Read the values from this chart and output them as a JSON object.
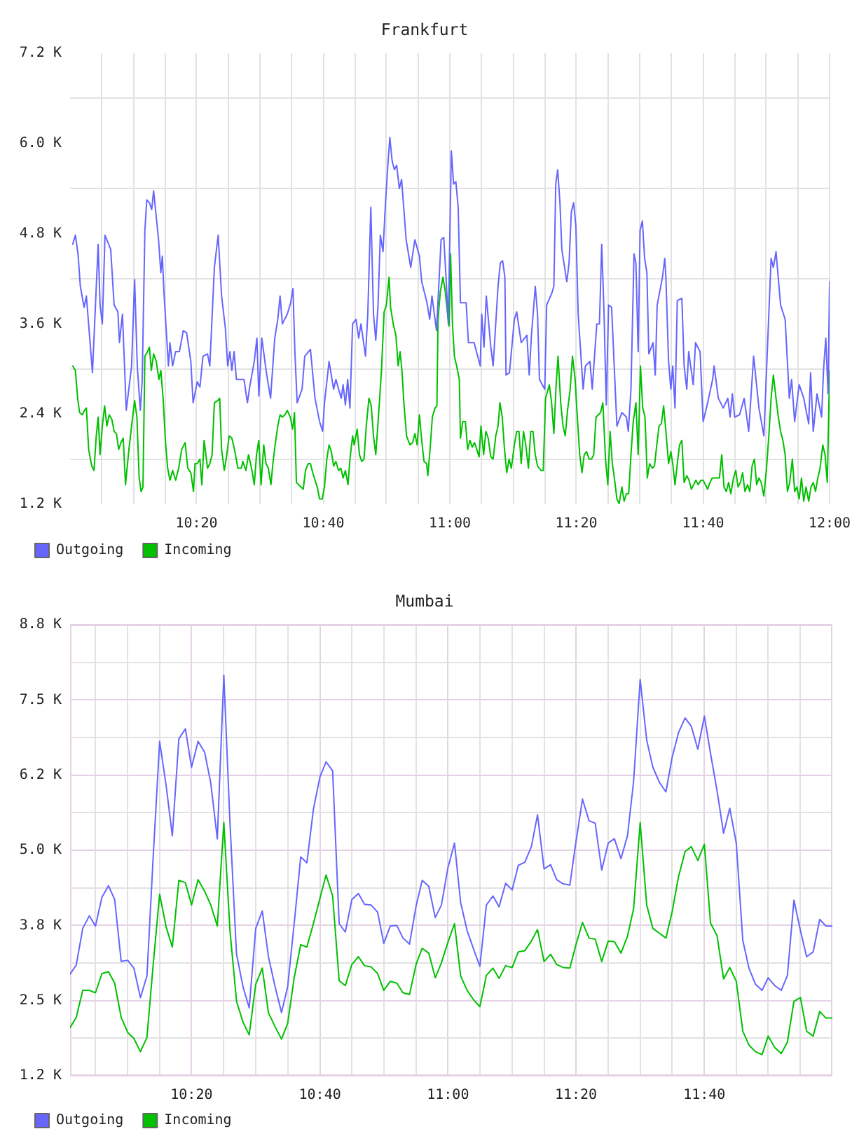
{
  "chart_data": [
    {
      "type": "line",
      "title": "Frankfurt",
      "legend": "bottom left",
      "grid": true,
      "marker": "none",
      "xlim": [
        10,
        12
      ],
      "xticks": [
        {
          "value": 10.083,
          "label": null
        },
        {
          "value": 10.167,
          "label": null
        },
        {
          "value": 10.25,
          "label": null
        },
        {
          "value": 10.333,
          "label": "10:20"
        },
        {
          "value": 10.417,
          "label": null
        },
        {
          "value": 10.5,
          "label": null
        },
        {
          "value": 10.583,
          "label": null
        },
        {
          "value": 10.667,
          "label": "10:40"
        },
        {
          "value": 10.75,
          "label": null
        },
        {
          "value": 10.833,
          "label": null
        },
        {
          "value": 10.917,
          "label": null
        },
        {
          "value": 11,
          "label": "11:00"
        },
        {
          "value": 11.083,
          "label": null
        },
        {
          "value": 11.167,
          "label": null
        },
        {
          "value": 11.25,
          "label": null
        },
        {
          "value": 11.333,
          "label": "11:20"
        },
        {
          "value": 11.417,
          "label": null
        },
        {
          "value": 11.5,
          "label": null
        },
        {
          "value": 11.583,
          "label": null
        },
        {
          "value": 11.667,
          "label": "11:40"
        },
        {
          "value": 11.75,
          "label": null
        },
        {
          "value": 11.833,
          "label": null
        },
        {
          "value": 11.917,
          "label": null
        },
        {
          "value": 12,
          "label": "12:00"
        }
      ],
      "ylim": [
        1200,
        7200
      ],
      "yticks": [
        {
          "value": 1200,
          "label": "1.2 K"
        },
        {
          "value": 1800,
          "label": null
        },
        {
          "value": 2400,
          "label": "2.4 K"
        },
        {
          "value": 3000,
          "label": null
        },
        {
          "value": 3600,
          "label": "3.6 K"
        },
        {
          "value": 4200,
          "label": null
        },
        {
          "value": 4800,
          "label": "4.8 K"
        },
        {
          "value": 5400,
          "label": null
        },
        {
          "value": 6000,
          "label": "6.0 K"
        },
        {
          "value": 6600,
          "label": null
        },
        {
          "value": 7200,
          "label": "7.2 K"
        }
      ],
      "series": [
        {
          "name": "Outgoing",
          "color": "#6666ff",
          "x": [
            10.007,
            10.014,
            10.021,
            10.027,
            10.037,
            10.043,
            10.059,
            10.074,
            10.079,
            10.085,
            10.092,
            10.107,
            10.116,
            10.126,
            10.13,
            10.138,
            10.148,
            10.162,
            10.17,
            10.177,
            10.185,
            10.19,
            10.197,
            10.202,
            10.209,
            10.215,
            10.22,
            10.233,
            10.239,
            10.243,
            10.247,
            10.259,
            10.263,
            10.27,
            10.278,
            10.288,
            10.298,
            10.307,
            10.318,
            10.324,
            10.335,
            10.342,
            10.35,
            10.362,
            10.368,
            10.38,
            10.39,
            10.399,
            10.409,
            10.415,
            10.421,
            10.426,
            10.432,
            10.438,
            10.458,
            10.467,
            10.473,
            10.485,
            10.492,
            10.497,
            10.505,
            10.517,
            10.528,
            10.539,
            10.547,
            10.553,
            10.559,
            10.572,
            10.581,
            10.587,
            10.592,
            10.598,
            10.611,
            10.618,
            10.633,
            10.645,
            10.657,
            10.665,
            10.67,
            10.682,
            10.694,
            10.7,
            10.714,
            10.719,
            10.725,
            10.731,
            10.737,
            10.744,
            10.753,
            10.76,
            10.766,
            10.778,
            10.784,
            10.792,
            10.799,
            10.805,
            10.811,
            10.817,
            10.824,
            10.83,
            10.836,
            10.842,
            10.848,
            10.854,
            10.86,
            10.867,
            10.873,
            10.885,
            10.897,
            10.908,
            10.92,
            10.926,
            10.94,
            10.947,
            10.953,
            10.965,
            10.977,
            10.984,
            10.99,
            10.996,
            11.004,
            11.01,
            11.016,
            11.022,
            11.028,
            11.043,
            11.049,
            11.064,
            11.08,
            11.084,
            11.09,
            11.096,
            11.108,
            11.114,
            11.127,
            11.133,
            11.139,
            11.145,
            11.148,
            11.157,
            11.17,
            11.176,
            11.188,
            11.203,
            11.209,
            11.215,
            11.225,
            11.231,
            11.236,
            11.25,
            11.255,
            11.268,
            11.274,
            11.279,
            11.284,
            11.29,
            11.295,
            11.308,
            11.314,
            11.32,
            11.326,
            11.332,
            11.338,
            11.351,
            11.357,
            11.369,
            11.375,
            11.387,
            11.394,
            11.4,
            11.406,
            11.412,
            11.418,
            11.426,
            11.44,
            11.453,
            11.465,
            11.47,
            11.477,
            11.485,
            11.49,
            11.496,
            11.501,
            11.507,
            11.513,
            11.519,
            11.524,
            11.535,
            11.541,
            11.546,
            11.56,
            11.566,
            11.569,
            11.576,
            11.582,
            11.587,
            11.593,
            11.599,
            11.611,
            11.617,
            11.624,
            11.629,
            11.641,
            11.647,
            11.659,
            11.667,
            11.679,
            11.692,
            11.696,
            11.707,
            11.72,
            11.732,
            11.738,
            11.744,
            11.75,
            11.763,
            11.775,
            11.787,
            11.8,
            11.814,
            11.827,
            11.834,
            11.846,
            11.852,
            11.859,
            11.871,
            11.883,
            11.894,
            11.9,
            11.908,
            11.92,
            11.932,
            11.945,
            11.95,
            11.957,
            11.967,
            11.979,
            11.984,
            11.99,
            11.996,
            12
          ],
          "values": [
            4660,
            4780,
            4530,
            4100,
            3820,
            3970,
            2950,
            4660,
            3850,
            3600,
            4780,
            4590,
            3850,
            3760,
            3350,
            3730,
            2450,
            3040,
            4190,
            3040,
            2450,
            2860,
            4840,
            5250,
            5210,
            5120,
            5370,
            4720,
            4280,
            4500,
            4040,
            3040,
            3350,
            3040,
            3230,
            3230,
            3510,
            3480,
            3100,
            2550,
            2830,
            2760,
            3170,
            3200,
            3040,
            4350,
            4780,
            3970,
            3540,
            3040,
            3230,
            2980,
            3230,
            2860,
            2860,
            2550,
            2760,
            3100,
            3410,
            2640,
            3410,
            2950,
            2610,
            3410,
            3660,
            3970,
            3600,
            3730,
            3880,
            4070,
            3230,
            2550,
            2730,
            3170,
            3260,
            2610,
            2300,
            2170,
            2550,
            3100,
            2730,
            2860,
            2610,
            2790,
            2520,
            2860,
            2480,
            3600,
            3660,
            3410,
            3600,
            3170,
            3730,
            5150,
            3730,
            3380,
            3850,
            4780,
            4560,
            5150,
            5650,
            6080,
            5770,
            5650,
            5710,
            5400,
            5520,
            4720,
            4350,
            4720,
            4500,
            4160,
            3880,
            3660,
            3970,
            3510,
            4720,
            4750,
            4220,
            3600,
            5900,
            5460,
            5490,
            5150,
            3880,
            3880,
            3350,
            3350,
            3040,
            3730,
            3290,
            3970,
            3290,
            3040,
            4100,
            4410,
            4440,
            4220,
            2920,
            2950,
            3660,
            3760,
            3350,
            3450,
            2920,
            3450,
            4100,
            3730,
            2860,
            2730,
            3850,
            4000,
            4100,
            5460,
            5650,
            5210,
            4590,
            4160,
            4410,
            5090,
            5210,
            4900,
            3730,
            2730,
            3040,
            3100,
            2730,
            3600,
            3600,
            4660,
            3760,
            2520,
            3850,
            3820,
            2240,
            2420,
            2360,
            2170,
            2730,
            4530,
            4410,
            3230,
            4840,
            4970,
            4470,
            4280,
            3200,
            3350,
            2920,
            3850,
            4220,
            4470,
            4220,
            3100,
            2730,
            3040,
            2480,
            3910,
            3940,
            3040,
            2730,
            3230,
            2790,
            3350,
            3230,
            2300,
            2550,
            2860,
            3040,
            2610,
            2480,
            2610,
            2360,
            2670,
            2360,
            2390,
            2610,
            2170,
            3170,
            2480,
            2110,
            2980,
            4470,
            4350,
            4560,
            3850,
            3660,
            2610,
            2860,
            2300,
            2790,
            2610,
            2270,
            2950,
            2170,
            2670,
            2360,
            2980,
            3410,
            2670,
            4160
          ]
        },
        {
          "name": "Incoming",
          "color": "#00c000",
          "x": [
            10.007,
            10.014,
            10.02,
            10.025,
            10.032,
            10.038,
            10.043,
            10.049,
            10.057,
            10.063,
            10.069,
            10.074,
            10.079,
            10.085,
            10.091,
            10.097,
            10.103,
            10.11,
            10.116,
            10.122,
            10.128,
            10.134,
            10.14,
            10.146,
            10.155,
            10.162,
            10.17,
            10.176,
            10.182,
            10.187,
            10.192,
            10.197,
            10.204,
            10.209,
            10.214,
            10.22,
            10.227,
            10.234,
            10.239,
            10.245,
            10.251,
            10.257,
            10.263,
            10.27,
            10.278,
            10.286,
            10.294,
            10.303,
            10.31,
            10.318,
            10.325,
            10.329,
            10.335,
            10.342,
            10.347,
            10.353,
            10.362,
            10.368,
            10.374,
            10.38,
            10.389,
            10.394,
            10.399,
            10.406,
            10.411,
            10.419,
            10.426,
            10.433,
            10.442,
            10.451,
            10.455,
            10.463,
            10.47,
            10.479,
            10.485,
            10.491,
            10.497,
            10.503,
            10.51,
            10.516,
            10.522,
            10.529,
            10.534,
            10.54,
            10.547,
            10.553,
            10.559,
            10.566,
            10.572,
            10.58,
            10.586,
            10.591,
            10.596,
            10.602,
            10.608,
            10.614,
            10.62,
            10.627,
            10.633,
            10.639,
            10.645,
            10.651,
            10.657,
            10.664,
            10.67,
            10.676,
            10.682,
            10.688,
            10.694,
            10.7,
            10.707,
            10.713,
            10.719,
            10.725,
            10.732,
            10.737,
            10.744,
            10.748,
            10.756,
            10.762,
            10.768,
            10.774,
            10.78,
            10.787,
            10.793,
            10.799,
            10.805,
            10.812,
            10.82,
            10.827,
            10.833,
            10.84,
            10.844,
            10.852,
            10.858,
            10.864,
            10.869,
            10.874,
            10.879,
            10.886,
            10.895,
            10.902,
            10.908,
            10.914,
            10.92,
            10.926,
            10.932,
            10.939,
            10.942,
            10.948,
            10.954,
            10.961,
            10.966,
            10.969,
            10.975,
            10.982,
            10.988,
            10.994,
            10.998,
            11.002,
            11.007,
            11.012,
            11.018,
            11.025,
            11.028,
            11.034,
            11.041,
            11.047,
            11.053,
            11.059,
            11.065,
            11.071,
            11.077,
            11.082,
            11.089,
            11.095,
            11.101,
            11.108,
            11.114,
            11.121,
            11.127,
            11.132,
            11.138,
            11.144,
            11.15,
            11.156,
            11.162,
            11.17,
            11.176,
            11.182,
            11.188,
            11.194,
            11.2,
            11.207,
            11.213,
            11.219,
            11.225,
            11.231,
            11.24,
            11.246,
            11.252,
            11.262,
            11.268,
            11.274,
            11.28,
            11.285,
            11.292,
            11.298,
            11.304,
            11.31,
            11.317,
            11.323,
            11.33,
            11.335,
            11.342,
            11.348,
            11.354,
            11.36,
            11.367,
            11.373,
            11.379,
            11.385,
            11.391,
            11.397,
            11.403,
            11.41,
            11.416,
            11.422,
            11.428,
            11.434,
            11.44,
            11.446,
            11.453,
            11.459,
            11.465,
            11.471,
            11.477,
            11.483,
            11.49,
            11.496,
            11.502,
            11.508,
            11.514,
            11.52,
            11.526,
            11.533,
            11.539,
            11.545,
            11.551,
            11.557,
            11.563,
            11.569,
            11.576,
            11.582,
            11.587,
            11.593,
            11.599,
            11.605,
            11.611,
            11.617,
            11.624,
            11.63,
            11.636,
            11.642,
            11.648,
            11.654,
            11.661,
            11.667,
            11.673,
            11.679,
            11.685,
            11.691,
            11.697,
            11.704,
            11.71,
            11.716,
            11.722,
            11.728,
            11.734,
            11.74,
            11.747,
            11.753,
            11.759,
            11.765,
            11.771,
            11.777,
            11.784,
            11.79,
            11.796,
            11.802,
            11.808,
            11.814,
            11.82,
            11.827,
            11.834,
            11.84,
            11.846,
            11.852,
            11.859,
            11.865,
            11.871,
            11.877,
            11.883,
            11.889,
            11.895,
            11.902,
            11.908,
            11.914,
            11.92,
            11.926,
            11.932,
            11.938,
            11.945,
            11.951,
            11.957,
            11.963,
            11.969,
            11.975,
            11.982,
            11.988,
            11.994,
            12
          ],
          "values": [
            3040,
            2980,
            2610,
            2420,
            2390,
            2450,
            2480,
            1930,
            1710,
            1650,
            2110,
            2360,
            1860,
            2240,
            2510,
            2240,
            2390,
            2330,
            2170,
            2140,
            1930,
            2020,
            2080,
            1460,
            1930,
            2240,
            2580,
            2360,
            1550,
            1370,
            1430,
            3170,
            3230,
            3290,
            2980,
            3200,
            3100,
            2860,
            2980,
            2610,
            2050,
            1680,
            1520,
            1650,
            1520,
            1680,
            1930,
            2020,
            1680,
            1620,
            1370,
            1740,
            1740,
            1800,
            1460,
            2050,
            1680,
            1740,
            1860,
            2550,
            2580,
            2610,
            1930,
            1650,
            1800,
            2110,
            2080,
            1930,
            1680,
            1680,
            1770,
            1650,
            1860,
            1650,
            1460,
            1860,
            2050,
            1460,
            1990,
            1740,
            1680,
            1460,
            1740,
            1990,
            2240,
            2390,
            2360,
            2390,
            2450,
            2360,
            2200,
            2420,
            1490,
            1460,
            1430,
            1400,
            1650,
            1740,
            1740,
            1620,
            1520,
            1430,
            1270,
            1270,
            1430,
            1800,
            1990,
            1900,
            1710,
            1770,
            1650,
            1680,
            1550,
            1650,
            1460,
            1800,
            2110,
            1990,
            2200,
            1860,
            1770,
            1800,
            2240,
            2610,
            2510,
            2110,
            1860,
            2360,
            2980,
            3760,
            3850,
            4220,
            3820,
            3570,
            3450,
            3040,
            3230,
            2980,
            2550,
            2110,
            1990,
            2020,
            2140,
            1990,
            2390,
            2050,
            1770,
            1740,
            1580,
            1930,
            2360,
            2480,
            2510,
            3660,
            4030,
            4220,
            4030,
            3730,
            3570,
            4530,
            3600,
            3170,
            3040,
            2860,
            2080,
            2300,
            2300,
            1930,
            2050,
            1960,
            2020,
            1930,
            1830,
            2240,
            1860,
            2170,
            2080,
            1830,
            1800,
            2110,
            2240,
            2550,
            2360,
            1930,
            1620,
            1800,
            1680,
            1990,
            2170,
            2170,
            1740,
            2170,
            1990,
            1680,
            2170,
            2170,
            1860,
            1710,
            1650,
            1650,
            2610,
            2790,
            2550,
            2140,
            2790,
            3170,
            2550,
            2240,
            2110,
            2450,
            2730,
            3170,
            2860,
            2420,
            1860,
            1620,
            1860,
            1900,
            1800,
            1800,
            1860,
            2360,
            2390,
            2420,
            2550,
            1800,
            1460,
            2170,
            1740,
            1520,
            1270,
            1210,
            1430,
            1240,
            1340,
            1340,
            1860,
            2300,
            2550,
            1860,
            3040,
            2480,
            2360,
            1550,
            1740,
            1680,
            1710,
            1990,
            2240,
            2270,
            2510,
            2170,
            1740,
            1900,
            1740,
            1460,
            1740,
            1990,
            2050,
            1490,
            1580,
            1520,
            1400,
            1460,
            1520,
            1460,
            1520,
            1520,
            1460,
            1400,
            1490,
            1550,
            1550,
            1550,
            1550,
            1860,
            1430,
            1370,
            1490,
            1340,
            1550,
            1650,
            1430,
            1490,
            1620,
            1370,
            1460,
            1370,
            1710,
            1800,
            1460,
            1550,
            1490,
            1310,
            1680,
            2110,
            2610,
            2920,
            2610,
            2360,
            2170,
            2050,
            1860,
            1370,
            1490,
            1800,
            1370,
            1430,
            1270,
            1550,
            1240,
            1430,
            1240,
            1430,
            1490,
            1370,
            1550,
            1680,
            1990,
            1860,
            1490,
            2980
          ]
        }
      ]
    },
    {
      "type": "line",
      "title": "Mumbai",
      "legend": "bottom left",
      "grid": true,
      "marker": "none",
      "x": [
        10.017,
        10.033,
        10.05,
        10.067,
        10.083,
        10.1,
        10.117,
        10.133,
        10.15,
        10.167,
        10.183,
        10.2,
        10.217,
        10.233,
        10.25,
        10.267,
        10.283,
        10.3,
        10.317,
        10.333,
        10.35,
        10.367,
        10.383,
        10.4,
        10.417,
        10.433,
        10.45,
        10.467,
        10.483,
        10.5,
        10.517,
        10.533,
        10.55,
        10.567,
        10.583,
        10.6,
        10.617,
        10.633,
        10.65,
        10.667,
        10.683,
        10.7,
        10.717,
        10.733,
        10.75,
        10.767,
        10.783,
        10.8,
        10.817,
        10.833,
        10.85,
        10.867,
        10.883,
        10.9,
        10.917,
        10.933,
        10.95,
        10.967,
        10.983,
        11,
        11.017,
        11.033,
        11.05,
        11.067,
        11.083,
        11.1,
        11.117,
        11.133,
        11.15,
        11.167,
        11.183,
        11.2,
        11.217,
        11.233,
        11.25,
        11.267,
        11.283,
        11.3,
        11.317,
        11.333,
        11.35,
        11.367,
        11.383,
        11.4,
        11.417,
        11.433,
        11.45,
        11.467,
        11.483,
        11.5,
        11.517,
        11.533,
        11.55,
        11.567,
        11.583,
        11.6,
        11.617,
        11.633,
        11.65,
        11.667,
        11.683,
        11.7,
        11.717,
        11.733,
        11.75,
        11.767,
        11.783,
        11.8,
        11.817,
        11.833,
        11.85,
        11.867,
        11.883,
        11.9,
        11.917,
        11.933,
        11.95,
        11.967,
        11.983,
        12
      ],
      "xlim": [
        10.017,
        12
      ],
      "xticks": [
        {
          "value": 10.083,
          "label": null
        },
        {
          "value": 10.167,
          "label": null
        },
        {
          "value": 10.25,
          "label": null
        },
        {
          "value": 10.333,
          "label": "10:20"
        },
        {
          "value": 10.417,
          "label": null
        },
        {
          "value": 10.5,
          "label": null
        },
        {
          "value": 10.583,
          "label": null
        },
        {
          "value": 10.667,
          "label": "10:40"
        },
        {
          "value": 10.75,
          "label": null
        },
        {
          "value": 10.833,
          "label": null
        },
        {
          "value": 10.917,
          "label": null
        },
        {
          "value": 11,
          "label": "11:00"
        },
        {
          "value": 11.083,
          "label": null
        },
        {
          "value": 11.167,
          "label": null
        },
        {
          "value": 11.25,
          "label": null
        },
        {
          "value": 11.333,
          "label": "11:20"
        },
        {
          "value": 11.417,
          "label": null
        },
        {
          "value": 11.5,
          "label": null
        },
        {
          "value": 11.583,
          "label": null
        },
        {
          "value": 11.667,
          "label": "11:40"
        },
        {
          "value": 11.75,
          "label": null
        },
        {
          "value": 11.833,
          "label": null
        },
        {
          "value": 11.917,
          "label": null
        }
      ],
      "ylim": [
        1250,
        8750
      ],
      "yticks": [
        {
          "value": 1250,
          "label": "1.2 K"
        },
        {
          "value": 1875,
          "label": null
        },
        {
          "value": 2500,
          "label": "2.5 K"
        },
        {
          "value": 3125,
          "label": null
        },
        {
          "value": 3750,
          "label": "3.8 K"
        },
        {
          "value": 4375,
          "label": null
        },
        {
          "value": 5000,
          "label": "5.0 K"
        },
        {
          "value": 5625,
          "label": null
        },
        {
          "value": 6250,
          "label": "6.2 K"
        },
        {
          "value": 6875,
          "label": null
        },
        {
          "value": 7500,
          "label": "7.5 K"
        },
        {
          "value": 8125,
          "label": null
        },
        {
          "value": 8750,
          "label": "8.8 K"
        }
      ],
      "series": [
        {
          "name": "Outgoing",
          "color": "#6666ff",
          "values": [
            2940,
            3090,
            3700,
            3910,
            3740,
            4220,
            4410,
            4180,
            3150,
            3170,
            3040,
            2550,
            2910,
            4860,
            6810,
            6070,
            5240,
            6850,
            7020,
            6380,
            6810,
            6630,
            6120,
            5190,
            7910,
            5450,
            3270,
            2730,
            2380,
            3700,
            3990,
            3230,
            2740,
            2300,
            2730,
            3780,
            4890,
            4790,
            5680,
            6220,
            6470,
            6320,
            3780,
            3640,
            4180,
            4280,
            4100,
            4090,
            3970,
            3450,
            3740,
            3750,
            3540,
            3440,
            4070,
            4500,
            4400,
            3880,
            4090,
            4710,
            5120,
            4130,
            3660,
            3350,
            3070,
            4090,
            4240,
            4060,
            4450,
            4340,
            4750,
            4800,
            5060,
            5590,
            4690,
            4760,
            4510,
            4440,
            4420,
            5140,
            5850,
            5490,
            5450,
            4670,
            5120,
            5190,
            4860,
            5240,
            6150,
            7840,
            6830,
            6380,
            6130,
            5970,
            6540,
            6960,
            7200,
            7060,
            6680,
            7230,
            6610,
            5990,
            5280,
            5700,
            5120,
            3500,
            3040,
            2770,
            2670,
            2880,
            2750,
            2670,
            2920,
            4170,
            3660,
            3230,
            3310,
            3850,
            3740,
            3740
          ]
        },
        {
          "name": "Incoming",
          "color": "#00c000",
          "values": [
            2050,
            2220,
            2670,
            2670,
            2630,
            2950,
            2980,
            2790,
            2220,
            1970,
            1870,
            1650,
            1890,
            3080,
            4270,
            3720,
            3390,
            4500,
            4460,
            4090,
            4510,
            4320,
            4090,
            3740,
            5460,
            3660,
            2490,
            2140,
            1930,
            2770,
            3040,
            2300,
            2070,
            1860,
            2120,
            2880,
            3430,
            3390,
            3780,
            4200,
            4590,
            4240,
            2830,
            2750,
            3100,
            3230,
            3080,
            3060,
            2950,
            2670,
            2820,
            2790,
            2630,
            2600,
            3100,
            3370,
            3290,
            2880,
            3130,
            3470,
            3780,
            2910,
            2670,
            2510,
            2400,
            2920,
            3040,
            2870,
            3080,
            3050,
            3310,
            3330,
            3490,
            3680,
            3150,
            3270,
            3100,
            3050,
            3040,
            3430,
            3800,
            3540,
            3520,
            3150,
            3490,
            3480,
            3290,
            3570,
            4030,
            5460,
            4090,
            3700,
            3620,
            3540,
            3970,
            4570,
            4980,
            5060,
            4830,
            5100,
            3790,
            3580,
            2860,
            3050,
            2820,
            1990,
            1760,
            1650,
            1600,
            1910,
            1720,
            1620,
            1810,
            2490,
            2550,
            1990,
            1910,
            2320,
            2210,
            2210
          ]
        }
      ]
    }
  ]
}
